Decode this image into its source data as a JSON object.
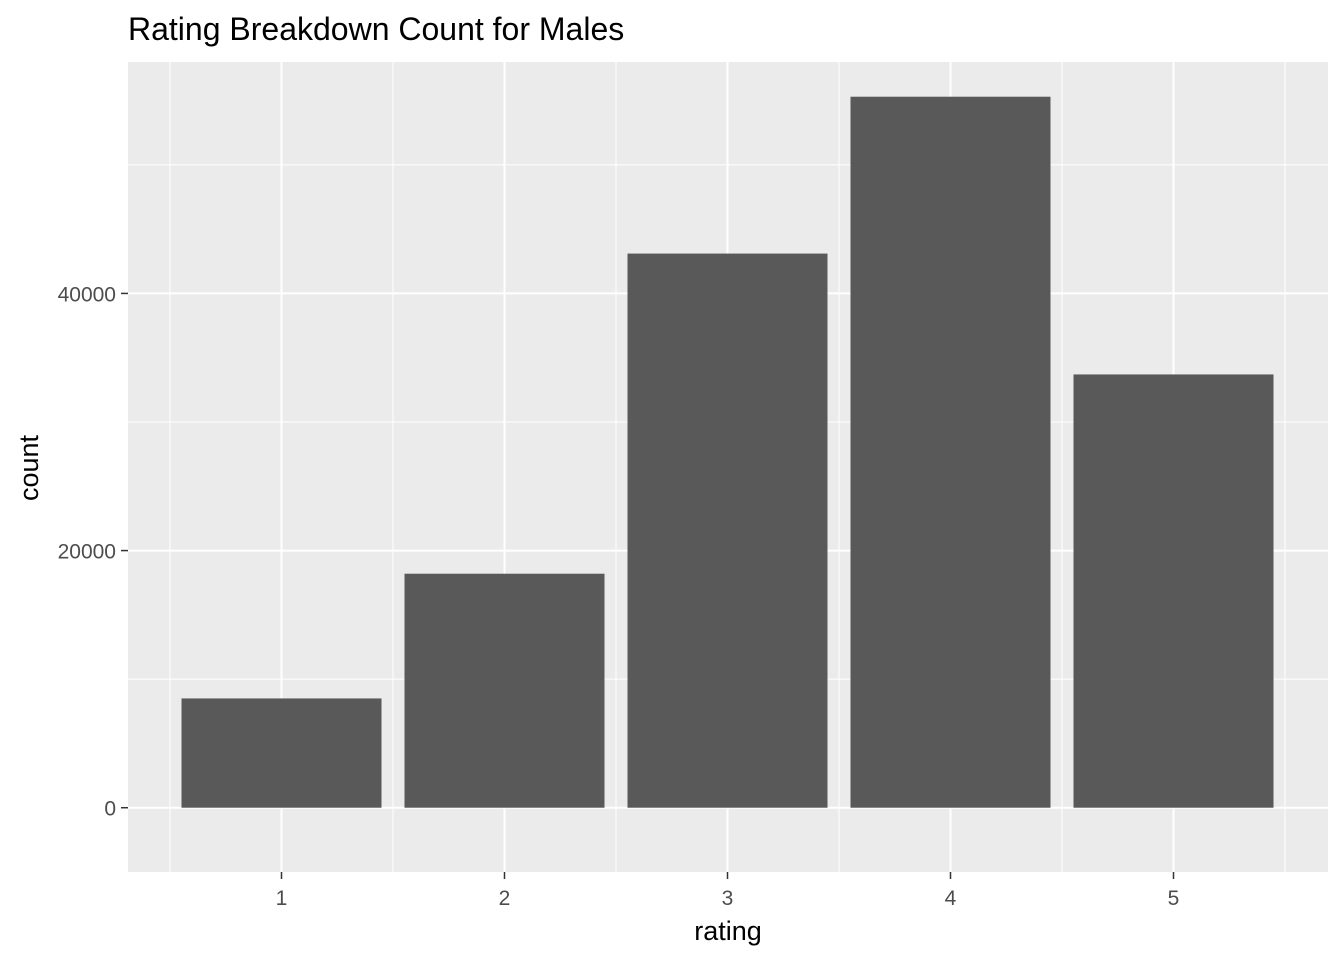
{
  "chart_data": {
    "type": "bar",
    "title": "Rating Breakdown Count for Males",
    "xlabel": "rating",
    "ylabel": "count",
    "categories": [
      "1",
      "2",
      "3",
      "4",
      "5"
    ],
    "values": [
      8500,
      18200,
      43100,
      55300,
      33700
    ],
    "ylim": [
      -5000,
      58000
    ],
    "yticks": [
      0,
      20000,
      40000
    ],
    "ytick_labels": [
      "0",
      "20000",
      "40000"
    ],
    "grid": true,
    "legend": "none",
    "colors": {
      "bar": "#595959",
      "panel": "#ebebeb",
      "grid": "#ffffff"
    }
  }
}
